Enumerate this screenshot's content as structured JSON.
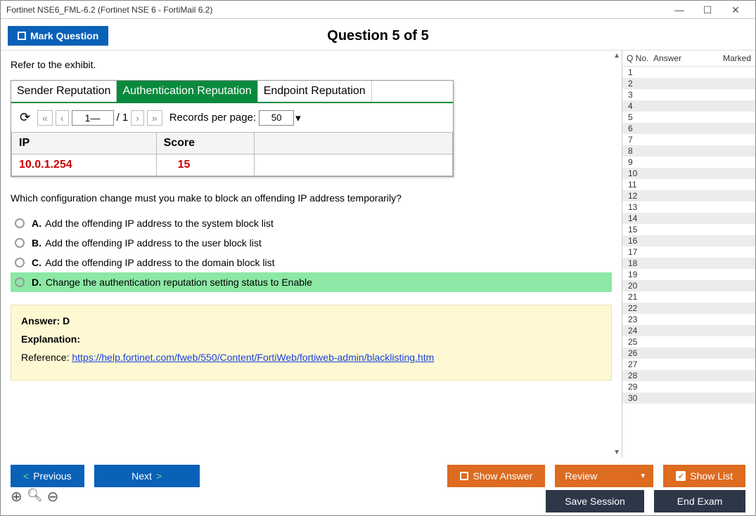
{
  "window_title": "Fortinet NSE6_FML-6.2 (Fortinet NSE 6 - FortiMail 6.2)",
  "mark_label": "Mark Question",
  "question_header": "Question 5 of 5",
  "intro": "Refer to the exhibit.",
  "exhibit": {
    "tabs": [
      "Sender Reputation",
      "Authentication Reputation",
      "Endpoint Reputation"
    ],
    "active_tab": 1,
    "page_input": "1—",
    "page_total": "/ 1",
    "records_label": "Records per page:",
    "records_value": "50",
    "cols": [
      "IP",
      "Score"
    ],
    "row": [
      "10.0.1.254",
      "15"
    ]
  },
  "question_text": "Which configuration change must you make to block an offending IP address temporarily?",
  "options": [
    {
      "letter": "A.",
      "text": "Add the offending IP address to the system block list",
      "correct": false
    },
    {
      "letter": "B.",
      "text": "Add the offending IP address to the user block list",
      "correct": false
    },
    {
      "letter": "C.",
      "text": "Add the offending IP address to the domain block list",
      "correct": false
    },
    {
      "letter": "D.",
      "text": "Change the authentication reputation setting status to Enable",
      "correct": true
    }
  ],
  "answer_label": "Answer:",
  "answer_value": "D",
  "explanation_label": "Explanation:",
  "reference_label": "Reference:",
  "reference_url": "https://help.fortinet.com/fweb/550/Content/FortiWeb/fortiweb-admin/blacklisting.htm",
  "side": {
    "hdr": [
      "Q No.",
      "Answer",
      "Marked"
    ],
    "count": 30
  },
  "buttons": {
    "previous": "Previous",
    "next": "Next",
    "show_answer": "Show Answer",
    "review": "Review",
    "show_list": "Show List",
    "save": "Save Session",
    "end": "End Exam"
  }
}
